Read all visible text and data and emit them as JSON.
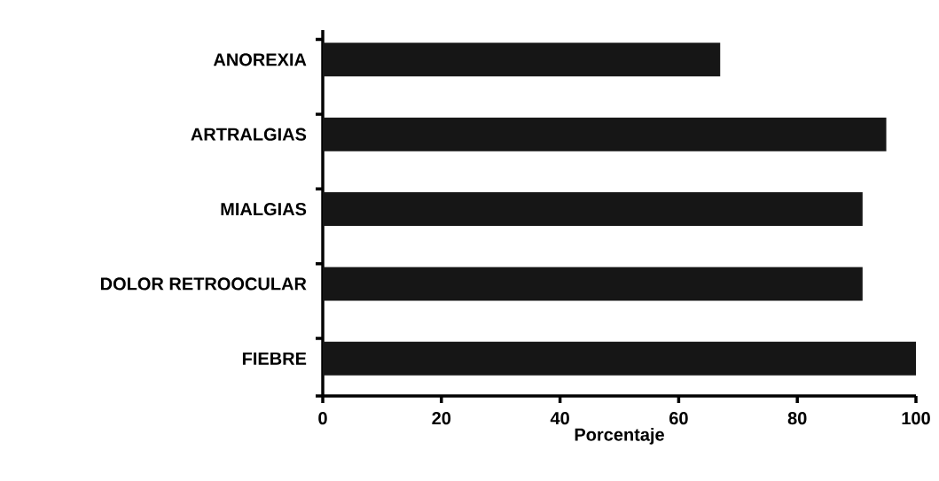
{
  "chart_data": {
    "type": "bar",
    "orientation": "horizontal",
    "xlabel": "Porcentaje",
    "categories": [
      "ANOREXIA",
      "ARTRALGIAS",
      "MIALGIAS",
      "DOLOR RETROOCULAR",
      "FIEBRE"
    ],
    "values": [
      67,
      95,
      91,
      91,
      100
    ],
    "color": "#161616",
    "xlim": [
      0,
      100
    ],
    "xticks": [
      0,
      20,
      40,
      60,
      80,
      100
    ]
  }
}
